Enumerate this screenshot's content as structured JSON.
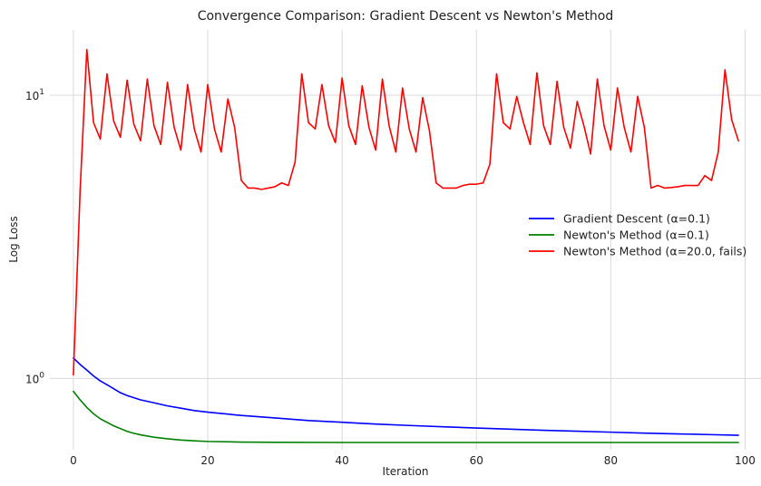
{
  "chart_data": {
    "type": "line",
    "title": "Convergence Comparison: Gradient Descent vs Newton's Method",
    "xlabel": "Iteration",
    "ylabel": "Log Loss",
    "y_scale": "log",
    "xlim": [
      -3.5,
      102.5
    ],
    "ylim": [
      0.56,
      17.0
    ],
    "x_ticks": [
      0,
      20,
      40,
      60,
      80,
      100
    ],
    "y_ticks": [
      {
        "value": 1,
        "base": "10",
        "exp": "0"
      },
      {
        "value": 10,
        "base": "10",
        "exp": "1"
      }
    ],
    "grid": true,
    "legend_position": "center-right",
    "series": [
      {
        "name": "Gradient Descent (α=0.1)",
        "color": "#0000ff",
        "x": [
          0,
          1,
          2,
          3,
          4,
          5,
          6,
          7,
          8,
          9,
          10,
          12,
          14,
          16,
          18,
          20,
          25,
          30,
          35,
          40,
          45,
          50,
          55,
          60,
          65,
          70,
          75,
          80,
          85,
          90,
          95,
          99
        ],
        "y": [
          1.18,
          1.12,
          1.07,
          1.02,
          0.98,
          0.95,
          0.92,
          0.89,
          0.87,
          0.855,
          0.84,
          0.82,
          0.8,
          0.785,
          0.77,
          0.76,
          0.74,
          0.725,
          0.71,
          0.7,
          0.69,
          0.682,
          0.675,
          0.668,
          0.662,
          0.656,
          0.651,
          0.646,
          0.641,
          0.637,
          0.633,
          0.63
        ]
      },
      {
        "name": "Newton's Method (α=0.1)",
        "color": "#008000",
        "x": [
          0,
          1,
          2,
          3,
          4,
          5,
          6,
          7,
          8,
          9,
          10,
          12,
          14,
          16,
          18,
          20,
          25,
          30,
          40,
          50,
          60,
          70,
          80,
          90,
          99
        ],
        "y": [
          0.9,
          0.84,
          0.79,
          0.75,
          0.72,
          0.7,
          0.68,
          0.665,
          0.65,
          0.64,
          0.632,
          0.62,
          0.612,
          0.606,
          0.602,
          0.599,
          0.596,
          0.595,
          0.594,
          0.594,
          0.594,
          0.594,
          0.594,
          0.594,
          0.594
        ]
      },
      {
        "name": "Newton's Method (α=20.0, fails)",
        "color": "#ff0000",
        "x": [
          0,
          1,
          2,
          3,
          4,
          5,
          6,
          7,
          8,
          9,
          10,
          11,
          12,
          13,
          14,
          15,
          16,
          17,
          18,
          19,
          20,
          21,
          22,
          23,
          24,
          25,
          26,
          27,
          28,
          29,
          30,
          31,
          32,
          33,
          34,
          35,
          36,
          37,
          38,
          39,
          40,
          41,
          42,
          43,
          44,
          45,
          46,
          47,
          48,
          49,
          50,
          51,
          52,
          53,
          54,
          55,
          56,
          57,
          58,
          59,
          60,
          61,
          62,
          63,
          64,
          65,
          66,
          67,
          68,
          69,
          70,
          71,
          72,
          73,
          74,
          75,
          76,
          77,
          78,
          79,
          80,
          81,
          82,
          83,
          84,
          85,
          86,
          87,
          88,
          89,
          90,
          91,
          92,
          93,
          94,
          95,
          96,
          97,
          98,
          99
        ],
        "y": [
          1.03,
          4.6,
          14.5,
          8.0,
          7.0,
          11.9,
          8.1,
          7.1,
          11.3,
          7.9,
          6.9,
          11.4,
          7.8,
          6.7,
          11.1,
          7.7,
          6.4,
          10.9,
          7.6,
          6.3,
          10.9,
          7.6,
          6.3,
          9.7,
          7.7,
          5.0,
          4.7,
          4.7,
          4.65,
          4.7,
          4.75,
          4.9,
          4.8,
          5.8,
          11.9,
          8.0,
          7.6,
          10.9,
          7.8,
          6.8,
          11.5,
          7.8,
          6.7,
          10.8,
          7.7,
          6.4,
          11.4,
          7.8,
          6.3,
          10.6,
          7.6,
          6.3,
          9.8,
          7.5,
          4.9,
          4.7,
          4.7,
          4.7,
          4.8,
          4.85,
          4.85,
          4.9,
          5.7,
          11.9,
          8.0,
          7.6,
          9.9,
          8.0,
          6.7,
          12.0,
          7.8,
          6.7,
          11.2,
          7.7,
          6.5,
          9.5,
          7.8,
          6.2,
          11.4,
          7.8,
          6.4,
          10.6,
          7.7,
          6.3,
          9.9,
          7.7,
          4.7,
          4.8,
          4.7,
          4.72,
          4.75,
          4.8,
          4.8,
          4.8,
          5.2,
          5.0,
          6.3,
          12.3,
          8.2,
          6.9
        ]
      }
    ]
  }
}
